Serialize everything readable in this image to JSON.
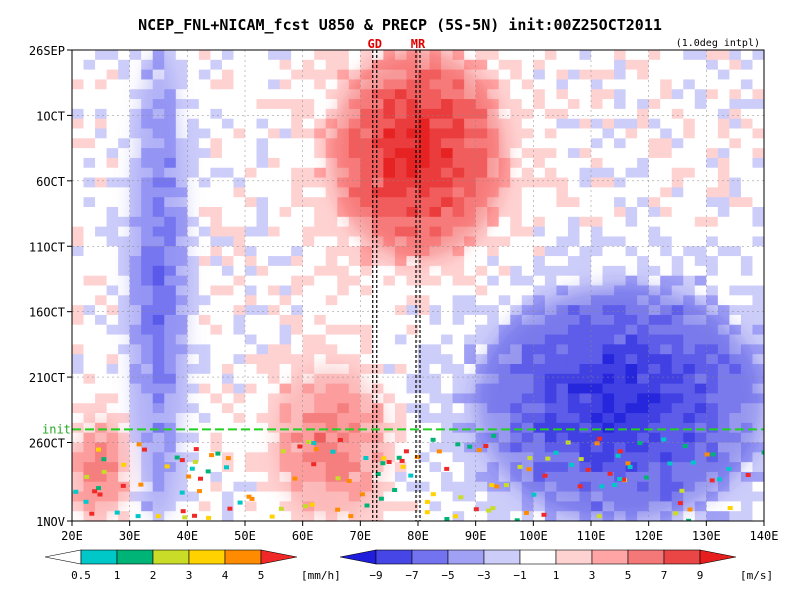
{
  "chart_data": {
    "type": "heatmap",
    "title": "NCEP_FNL+NICAM_fcst U850 & PRECP (5S-5N) init:00Z25OCT2011",
    "subtitle": "(1.0deg intpl)",
    "x_axis": {
      "range": [
        20,
        140
      ],
      "ticks": [
        20,
        30,
        40,
        50,
        60,
        70,
        80,
        90,
        100,
        110,
        120,
        130,
        140
      ],
      "tick_labels": [
        "20E",
        "30E",
        "40E",
        "50E",
        "60E",
        "70E",
        "80E",
        "90E",
        "100E",
        "110E",
        "120E",
        "130E",
        "140E"
      ]
    },
    "y_axis": {
      "range": [
        "2011-09-26",
        "2011-11-01"
      ],
      "ticks": [
        "2011-09-26",
        "2011-10-01",
        "2011-10-06",
        "2011-10-11",
        "2011-10-16",
        "2011-10-21",
        "2011-10-26",
        "2011-11-01"
      ],
      "tick_labels": [
        "26SEP",
        "1OCT",
        "6OCT",
        "11OCT",
        "16OCT",
        "21OCT",
        "26OCT",
        "1NOV"
      ],
      "direction": "time increases downward"
    },
    "init_line": {
      "date": "2011-10-25",
      "label": "init"
    },
    "station_markers": [
      {
        "label": "GD",
        "lon": 72.5
      },
      {
        "label": "MR",
        "lon": 80
      }
    ],
    "colorbars": [
      {
        "variable": "precipitation",
        "unit": "[mm/h]",
        "tick_labels": [
          "0.5",
          "1",
          "2",
          "3",
          "4",
          "5"
        ],
        "colors": [
          "#00c8c8",
          "#00b478",
          "#c8dc28",
          "#ffd200",
          "#ff8c00",
          "#f02828"
        ]
      },
      {
        "variable": "u850",
        "unit": "[m/s]",
        "tick_labels": [
          "−9",
          "−7",
          "−5",
          "−3",
          "−1",
          "1",
          "3",
          "5",
          "7",
          "9"
        ],
        "colors": [
          "#1e1edc",
          "#4646e6",
          "#7373f0",
          "#a0a0f5",
          "#cdcdfa",
          "#ffffff",
          "#ffd2d2",
          "#ffa5a5",
          "#f57878",
          "#eb4646",
          "#e61e1e"
        ]
      }
    ],
    "anomaly_features": [
      {
        "lon_range": [
          30,
          40
        ],
        "date_range": [
          "2011-09-26",
          "2011-11-01"
        ],
        "sign": "easterly"
      },
      {
        "lon_range": [
          65,
          95
        ],
        "date_range": [
          "2011-09-26",
          "2011-10-12"
        ],
        "sign": "westerly",
        "peak": 9
      },
      {
        "lon_range": [
          90,
          140
        ],
        "date_range": [
          "2011-10-14",
          "2011-11-01"
        ],
        "sign": "easterly",
        "peak": -9
      },
      {
        "lon_range": [
          55,
          75
        ],
        "date_range": [
          "2011-10-20",
          "2011-11-01"
        ],
        "sign": "westerly"
      },
      {
        "lon_range": [
          20,
          30
        ],
        "date_range": [
          "2011-10-24",
          "2011-11-01"
        ],
        "sign": "westerly"
      }
    ]
  }
}
